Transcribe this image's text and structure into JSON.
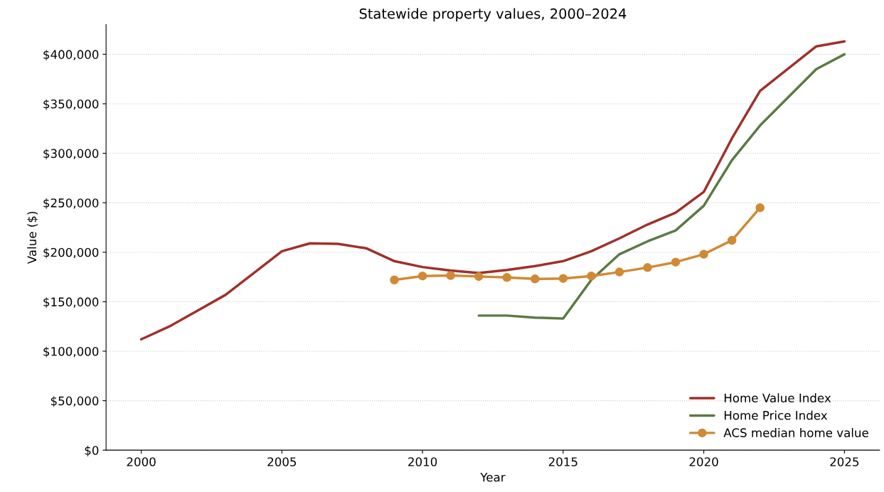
{
  "chart_data": {
    "type": "line",
    "title": "Statewide property values, 2000–2024",
    "xlabel": "Year",
    "ylabel": "Value ($)",
    "series": [
      {
        "name": "Home Value Index",
        "color": "#a0302a",
        "marker": "none",
        "x": [
          2000,
          2001,
          2002,
          2003,
          2004,
          2005,
          2006,
          2007,
          2008,
          2009,
          2010,
          2011,
          2012,
          2013,
          2014,
          2015,
          2016,
          2017,
          2018,
          2019,
          2020,
          2021,
          2022,
          2024,
          2025
        ],
        "values": [
          112000,
          125000,
          141000,
          157000,
          179000,
          201000,
          209000,
          208500,
          204000,
          191000,
          185000,
          181500,
          179000,
          182000,
          186000,
          191000,
          201000,
          214000,
          228000,
          240000,
          261000,
          315000,
          363000,
          408000,
          413000
        ]
      },
      {
        "name": "Home Price Index",
        "color": "#5a7a44",
        "marker": "none",
        "x": [
          2012,
          2013,
          2014,
          2015,
          2016,
          2017,
          2018,
          2019,
          2020,
          2021,
          2022,
          2024,
          2025
        ],
        "values": [
          136000,
          136000,
          134000,
          133000,
          172000,
          198000,
          211000,
          222000,
          247000,
          293000,
          328000,
          385000,
          400000
        ]
      },
      {
        "name": "ACS median home value",
        "color": "#d08a35",
        "marker": "circle",
        "x": [
          2009,
          2010,
          2011,
          2012,
          2013,
          2014,
          2015,
          2016,
          2017,
          2018,
          2019,
          2020,
          2021,
          2022
        ],
        "values": [
          172000,
          176000,
          176500,
          175500,
          174500,
          173000,
          173500,
          176000,
          180000,
          184500,
          190000,
          198000,
          212000,
          245000
        ]
      }
    ],
    "xlim": [
      1998.75,
      2026.25
    ],
    "xticks": [
      2000,
      2005,
      2010,
      2015,
      2020,
      2025
    ],
    "ylim": [
      0,
      430000
    ],
    "yticks": [
      {
        "value": 0,
        "label": "$0"
      },
      {
        "value": 50000,
        "label": "$50,000"
      },
      {
        "value": 100000,
        "label": "$100,000"
      },
      {
        "value": 150000,
        "label": "$150,000"
      },
      {
        "value": 200000,
        "label": "$200,000"
      },
      {
        "value": 250000,
        "label": "$250,000"
      },
      {
        "value": 300000,
        "label": "$300,000"
      },
      {
        "value": 350000,
        "label": "$350,000"
      },
      {
        "value": 400000,
        "label": "$400,000"
      }
    ],
    "grid": "y",
    "legend": "lower right",
    "line_style": "solid"
  }
}
